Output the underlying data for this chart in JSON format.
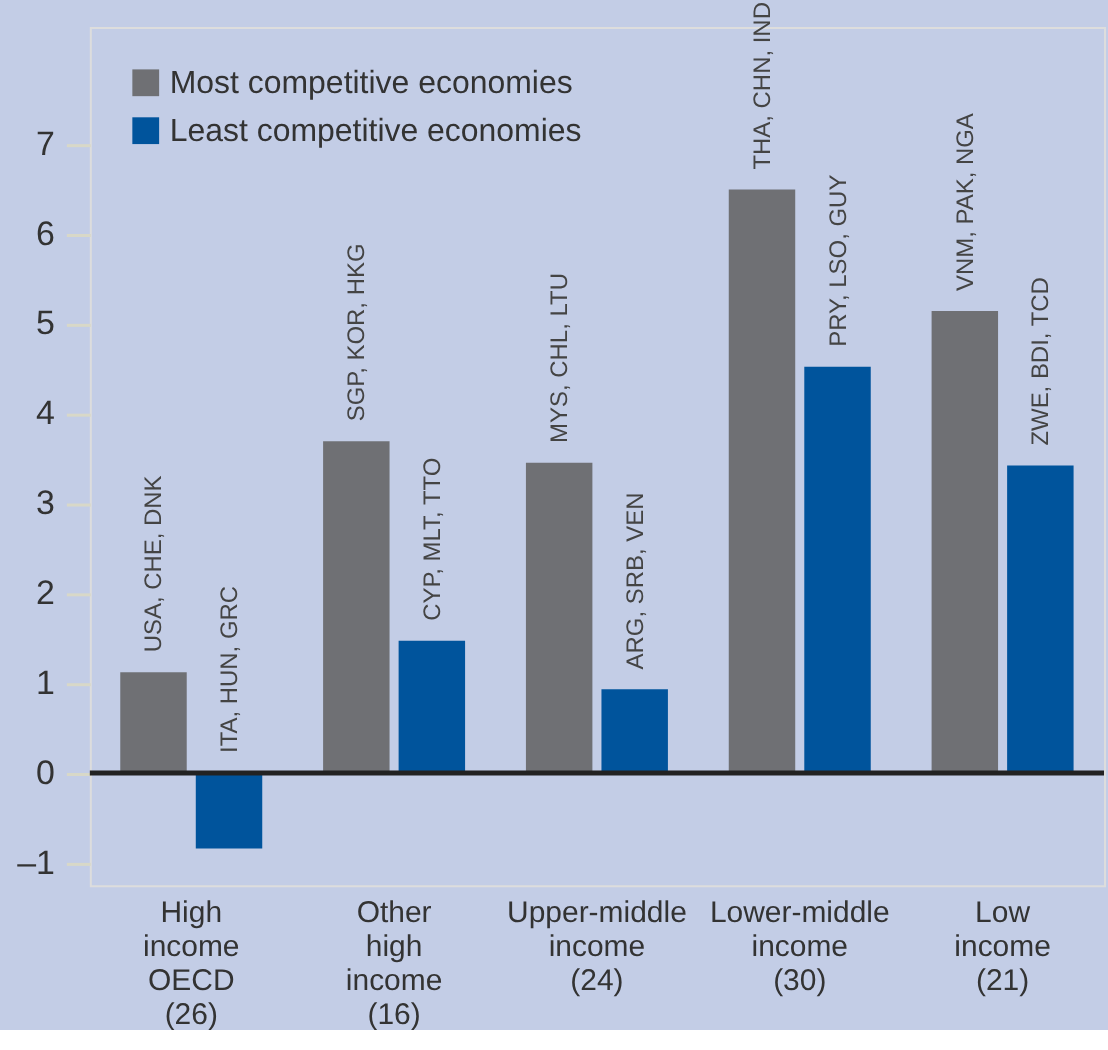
{
  "chart_data": {
    "type": "bar",
    "categories": [
      "High income OECD (26)",
      "Other high income (16)",
      "Upper-middle income (24)",
      "Lower-middle income (30)",
      "Low income (21)"
    ],
    "series": [
      {
        "name": "Most competitive economies",
        "color": "#6f7074",
        "values": [
          1.12,
          3.69,
          3.45,
          6.49,
          5.14
        ],
        "value_labels": [
          "USA, CHE, DNK",
          "SGP, KOR, HKG",
          "MYS, CHL, LTU",
          "THA, CHN, IND",
          "VNM, PAK, NGA"
        ]
      },
      {
        "name": "Least competitive economies",
        "color": "#00549c",
        "values": [
          -0.84,
          1.47,
          0.93,
          4.52,
          3.42
        ],
        "value_labels": [
          "ITA, HUN, GRC",
          "CYP, MLT, TTO",
          "ARG, SRB, VEN",
          "PRY, LSO, GUY",
          "ZWE, BDI, TCD"
        ]
      }
    ],
    "ylim": [
      -1.25,
      8.3
    ],
    "yticks": [
      {
        "value": -1,
        "label": "–1"
      },
      0,
      1,
      2,
      3,
      4,
      5,
      6,
      7
    ],
    "ref_lines": [
      {
        "axis": "y",
        "value": 0,
        "color": "#222222"
      }
    ],
    "grid": false,
    "legend": "top left"
  }
}
